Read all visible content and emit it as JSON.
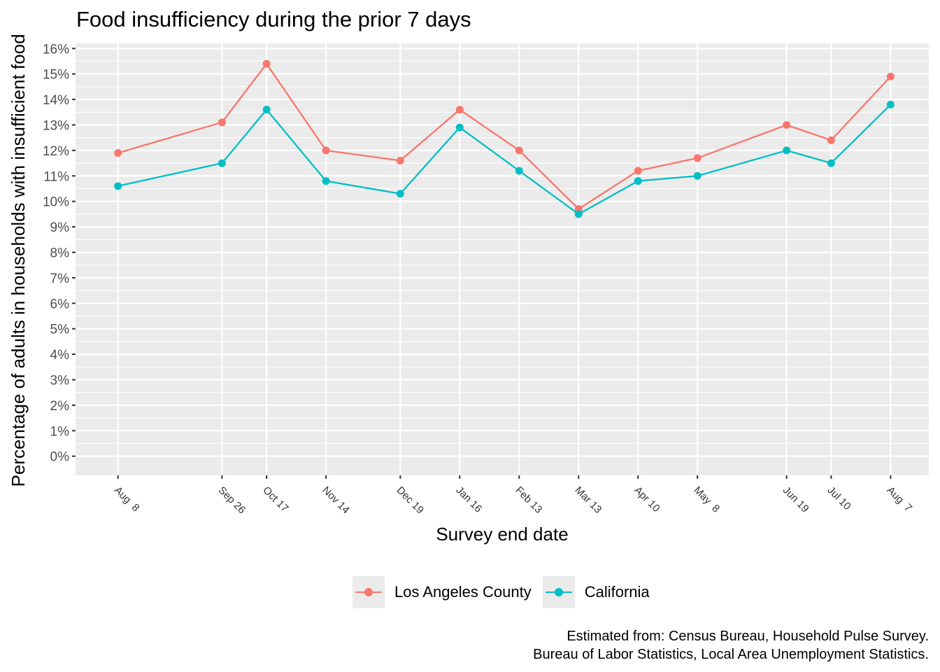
{
  "chart_data": {
    "type": "line",
    "title": "Food insufficiency during the prior 7 days",
    "xlabel": "Survey end date",
    "ylabel": "Percentage of adults in households with insufficient food",
    "x": [
      "Aug  8",
      "Sep 26",
      "Oct 17",
      "Nov 14",
      "Dec 19",
      "Jan 16",
      "Feb 13",
      "Mar 13",
      "Apr 10",
      "May  8",
      "Jun 19",
      "Jul 10",
      "Aug  7"
    ],
    "x_days": [
      0,
      49,
      70,
      98,
      133,
      161,
      189,
      217,
      245,
      273,
      315,
      336,
      364
    ],
    "yticks": [
      "0%",
      "1%",
      "2%",
      "3%",
      "4%",
      "5%",
      "6%",
      "7%",
      "8%",
      "9%",
      "10%",
      "11%",
      "12%",
      "13%",
      "14%",
      "15%",
      "16%"
    ],
    "ylim": [
      0,
      16
    ],
    "grid": true,
    "legend_position": "bottom",
    "series": [
      {
        "name": "Los Angeles County",
        "color": "#F8766D",
        "values": [
          11.9,
          13.1,
          15.4,
          12.0,
          11.6,
          13.6,
          12.0,
          9.7,
          11.2,
          11.7,
          13.0,
          12.4,
          14.9
        ]
      },
      {
        "name": "California",
        "color": "#00BFC4",
        "values": [
          10.6,
          11.5,
          13.6,
          10.8,
          10.3,
          12.9,
          11.2,
          9.5,
          10.8,
          11.0,
          12.0,
          11.5,
          13.8
        ]
      }
    ]
  },
  "caption": {
    "line1": "Estimated from: Census Bureau, Household Pulse Survey.",
    "line2": "Bureau of Labor Statistics, Local Area Unemployment Statistics."
  }
}
